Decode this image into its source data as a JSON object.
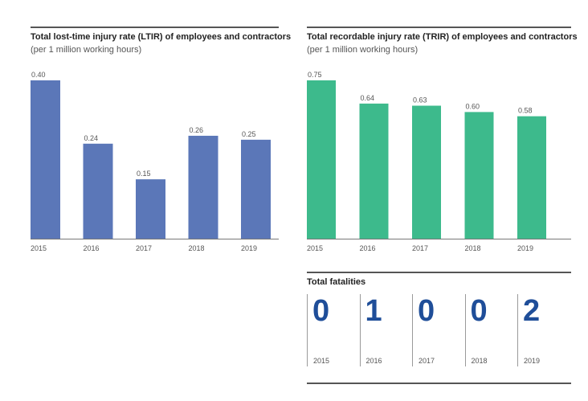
{
  "chart_data": [
    {
      "type": "bar",
      "title": "Total lost-time injury rate (LTIR) of employees and contractors",
      "subtitle": "(per 1 million working hours)",
      "categories": [
        "2015",
        "2016",
        "2017",
        "2018",
        "2019"
      ],
      "values": [
        0.4,
        0.24,
        0.15,
        0.26,
        0.25
      ],
      "value_labels": [
        "0.40",
        "0.24",
        "0.15",
        "0.26",
        "0.25"
      ],
      "ylim": [
        0,
        0.4
      ],
      "color": "#5b77b8",
      "grid": false
    },
    {
      "type": "bar",
      "title": "Total recordable injury rate (TRIR) of employees and contractors",
      "subtitle": "(per 1 million working hours)",
      "categories": [
        "2015",
        "2016",
        "2017",
        "2018",
        "2019"
      ],
      "values": [
        0.75,
        0.64,
        0.63,
        0.6,
        0.58
      ],
      "value_labels": [
        "0.75",
        "0.64",
        "0.63",
        "0.60",
        "0.58"
      ],
      "ylim": [
        0,
        0.75
      ],
      "color": "#3dba8c",
      "grid": false
    }
  ],
  "fatalities": {
    "title": "Total fatalities",
    "color": "#1f4e99",
    "items": [
      {
        "year": "2015",
        "value": "0"
      },
      {
        "year": "2016",
        "value": "1"
      },
      {
        "year": "2017",
        "value": "0"
      },
      {
        "year": "2018",
        "value": "0"
      },
      {
        "year": "2019",
        "value": "2"
      }
    ]
  }
}
